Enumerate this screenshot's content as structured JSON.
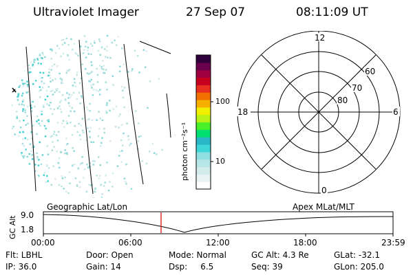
{
  "header": {
    "instrument": "Ultraviolet Imager",
    "date": "27 Sep 07",
    "time": "08:11:09 UT"
  },
  "colorbar": {
    "unit_label": "photon cm⁻²s⁻¹",
    "ticks": [
      "100",
      "10"
    ],
    "colors": [
      "#ffffff",
      "#e8f4f4",
      "#d2ecec",
      "#b8e6e6",
      "#8ee0e0",
      "#3ed6d6",
      "#2ab8c8",
      "#00e070",
      "#48f028",
      "#b8f018",
      "#f0f000",
      "#f8b000",
      "#f07000",
      "#e83020",
      "#c80020",
      "#a00040",
      "#6a004c",
      "#30003c"
    ]
  },
  "polar": {
    "mlt_labels": {
      "top": "12",
      "bottom": "0",
      "left": "18",
      "right": "6"
    },
    "lat_labels": [
      "60",
      "70",
      "80"
    ]
  },
  "timeline": {
    "left_label": "Geographic Lat/Lon",
    "right_label": "Apex  MLat/MLT",
    "axis_label": "GC Alt",
    "y_ticks": [
      "9.0",
      "1.8"
    ],
    "x_ticks": [
      "00:00",
      "06:00",
      "12:00",
      "18:00",
      "23:59"
    ],
    "marker_color": "#cc0000"
  },
  "info": {
    "filter": "Flt: LBHL",
    "door": "Door: Open",
    "mode": "Mode: Normal",
    "gc_alt": "GC Alt: 4.3 Re",
    "glat": "GLat: -32.1",
    "ip": "IP: 36.0",
    "gain": "Gain: 14",
    "dsp": "Dsp:     6.5",
    "seq": "Seq: 39",
    "glon": "GLon: 205.0"
  }
}
